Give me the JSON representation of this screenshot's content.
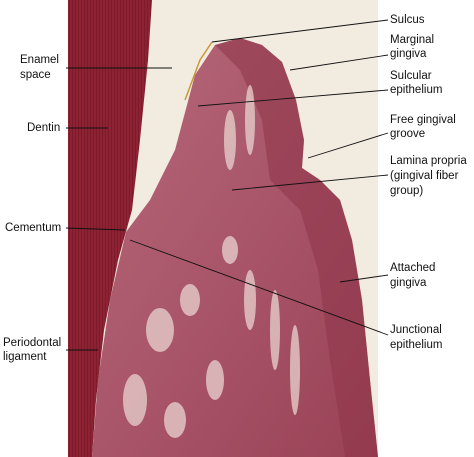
{
  "labels": {
    "left": [
      {
        "lines": [
          "Enamel",
          "space"
        ]
      },
      {
        "lines": [
          "Dentin"
        ]
      },
      {
        "lines": [
          "Cementum"
        ]
      },
      {
        "lines": [
          "Periodontal",
          "ligament"
        ]
      }
    ],
    "right": [
      {
        "lines": [
          "Sulcus"
        ]
      },
      {
        "lines": [
          "Marginal",
          "gingiva"
        ]
      },
      {
        "lines": [
          "Sulcular",
          "epithelium"
        ]
      },
      {
        "lines": [
          "Free gingival",
          "groove"
        ]
      },
      {
        "lines": [
          "Lamina propria",
          "(gingival fiber",
          "group)"
        ]
      },
      {
        "lines": [
          "Attached",
          "gingiva"
        ]
      },
      {
        "lines": [
          "Junctional",
          "epithelium"
        ]
      }
    ]
  }
}
